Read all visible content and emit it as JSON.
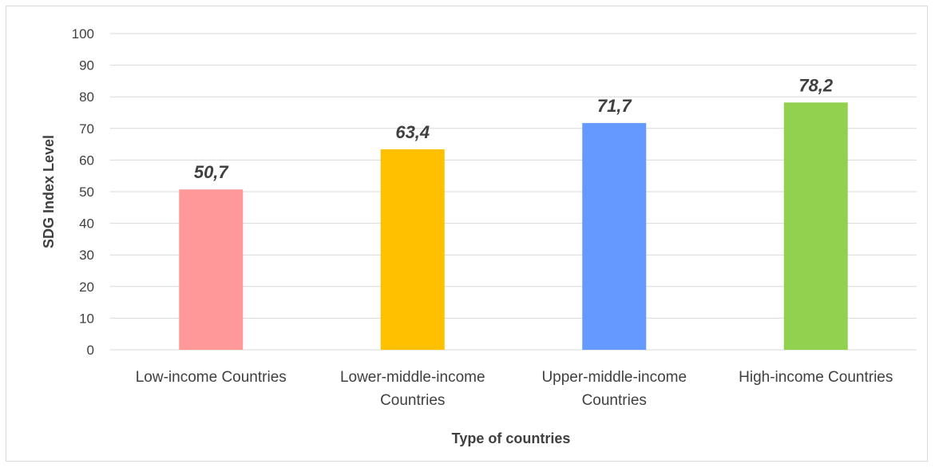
{
  "chart_data": {
    "type": "bar",
    "categories": [
      [
        "Low-income Countries"
      ],
      [
        "Lower-middle-income",
        "Countries"
      ],
      [
        "Upper-middle-income",
        "Countries"
      ],
      [
        "High-income Countries"
      ]
    ],
    "values": [
      50.7,
      63.4,
      71.7,
      78.2
    ],
    "data_labels": [
      "50,7",
      "63,4",
      "71,7",
      "78,2"
    ],
    "bar_colors": [
      "#ff9999",
      "#ffc000",
      "#6699ff",
      "#92d050"
    ],
    "xlabel": "Type of countries",
    "ylabel": "SDG Index Level",
    "ylim": [
      0,
      100
    ],
    "yticks": [
      0,
      10,
      20,
      30,
      40,
      50,
      60,
      70,
      80,
      90,
      100
    ],
    "grid": true,
    "legend": "none"
  }
}
